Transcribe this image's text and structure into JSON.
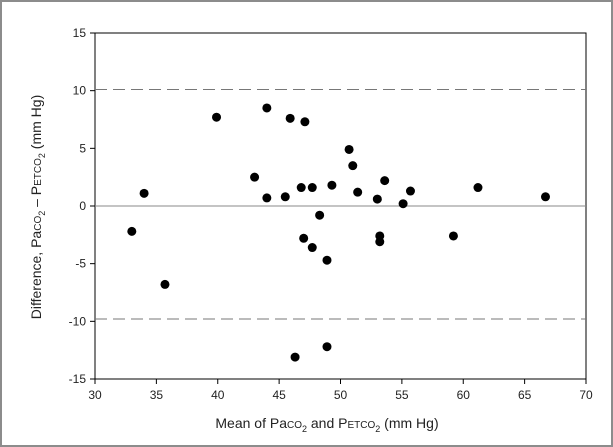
{
  "chart_data": {
    "type": "scatter",
    "title": "",
    "xlabel": {
      "prefix": "Mean of Pa",
      "co_sc": "CO",
      "sub": "2",
      "mid": " and P",
      "etco_sc": "ETCO",
      "sub2": "2",
      "suffix": " (mm Hg)"
    },
    "ylabel": {
      "prefix": "Difference, Pa",
      "co_sc": "CO",
      "sub": "2",
      "mid": " – P",
      "etco_sc": "ETCO",
      "sub2": "2",
      "suffix": " (mm Hg)"
    },
    "xlim": [
      30,
      70
    ],
    "ylim": [
      -15,
      15
    ],
    "xticks": [
      "30",
      "35",
      "40",
      "45",
      "50",
      "55",
      "60",
      "65",
      "70"
    ],
    "yticks": [
      "-15",
      "-10",
      "-5",
      "0",
      "5",
      "10",
      "15"
    ],
    "reference_lines": [
      {
        "y": 10.1,
        "style": "dashed"
      },
      {
        "y": 0,
        "style": "solid"
      },
      {
        "y": -9.8,
        "style": "dashed"
      }
    ],
    "series": [
      {
        "points": [
          {
            "x": 33.0,
            "y": -2.2
          },
          {
            "x": 34.0,
            "y": 1.1
          },
          {
            "x": 35.7,
            "y": -6.8
          },
          {
            "x": 39.9,
            "y": 7.7
          },
          {
            "x": 43.0,
            "y": 2.5
          },
          {
            "x": 44.0,
            "y": 8.5
          },
          {
            "x": 44.0,
            "y": 0.7
          },
          {
            "x": 45.5,
            "y": 0.8
          },
          {
            "x": 45.9,
            "y": 7.6
          },
          {
            "x": 46.3,
            "y": -13.1
          },
          {
            "x": 46.8,
            "y": 1.6
          },
          {
            "x": 47.0,
            "y": -2.8
          },
          {
            "x": 47.1,
            "y": 7.3
          },
          {
            "x": 47.7,
            "y": -3.6
          },
          {
            "x": 47.7,
            "y": 1.6
          },
          {
            "x": 48.3,
            "y": -0.8
          },
          {
            "x": 48.9,
            "y": -12.2
          },
          {
            "x": 48.9,
            "y": -4.7
          },
          {
            "x": 49.3,
            "y": 1.8
          },
          {
            "x": 50.7,
            "y": 4.9
          },
          {
            "x": 51.0,
            "y": 3.5
          },
          {
            "x": 51.4,
            "y": 1.2
          },
          {
            "x": 53.0,
            "y": 0.6
          },
          {
            "x": 53.2,
            "y": -3.1
          },
          {
            "x": 53.2,
            "y": -2.6
          },
          {
            "x": 53.6,
            "y": 2.2
          },
          {
            "x": 55.1,
            "y": 0.2
          },
          {
            "x": 55.7,
            "y": 1.3
          },
          {
            "x": 59.2,
            "y": -2.6
          },
          {
            "x": 61.2,
            "y": 1.6
          },
          {
            "x": 66.7,
            "y": 0.8
          }
        ]
      }
    ],
    "grid": false,
    "legend": "none"
  }
}
